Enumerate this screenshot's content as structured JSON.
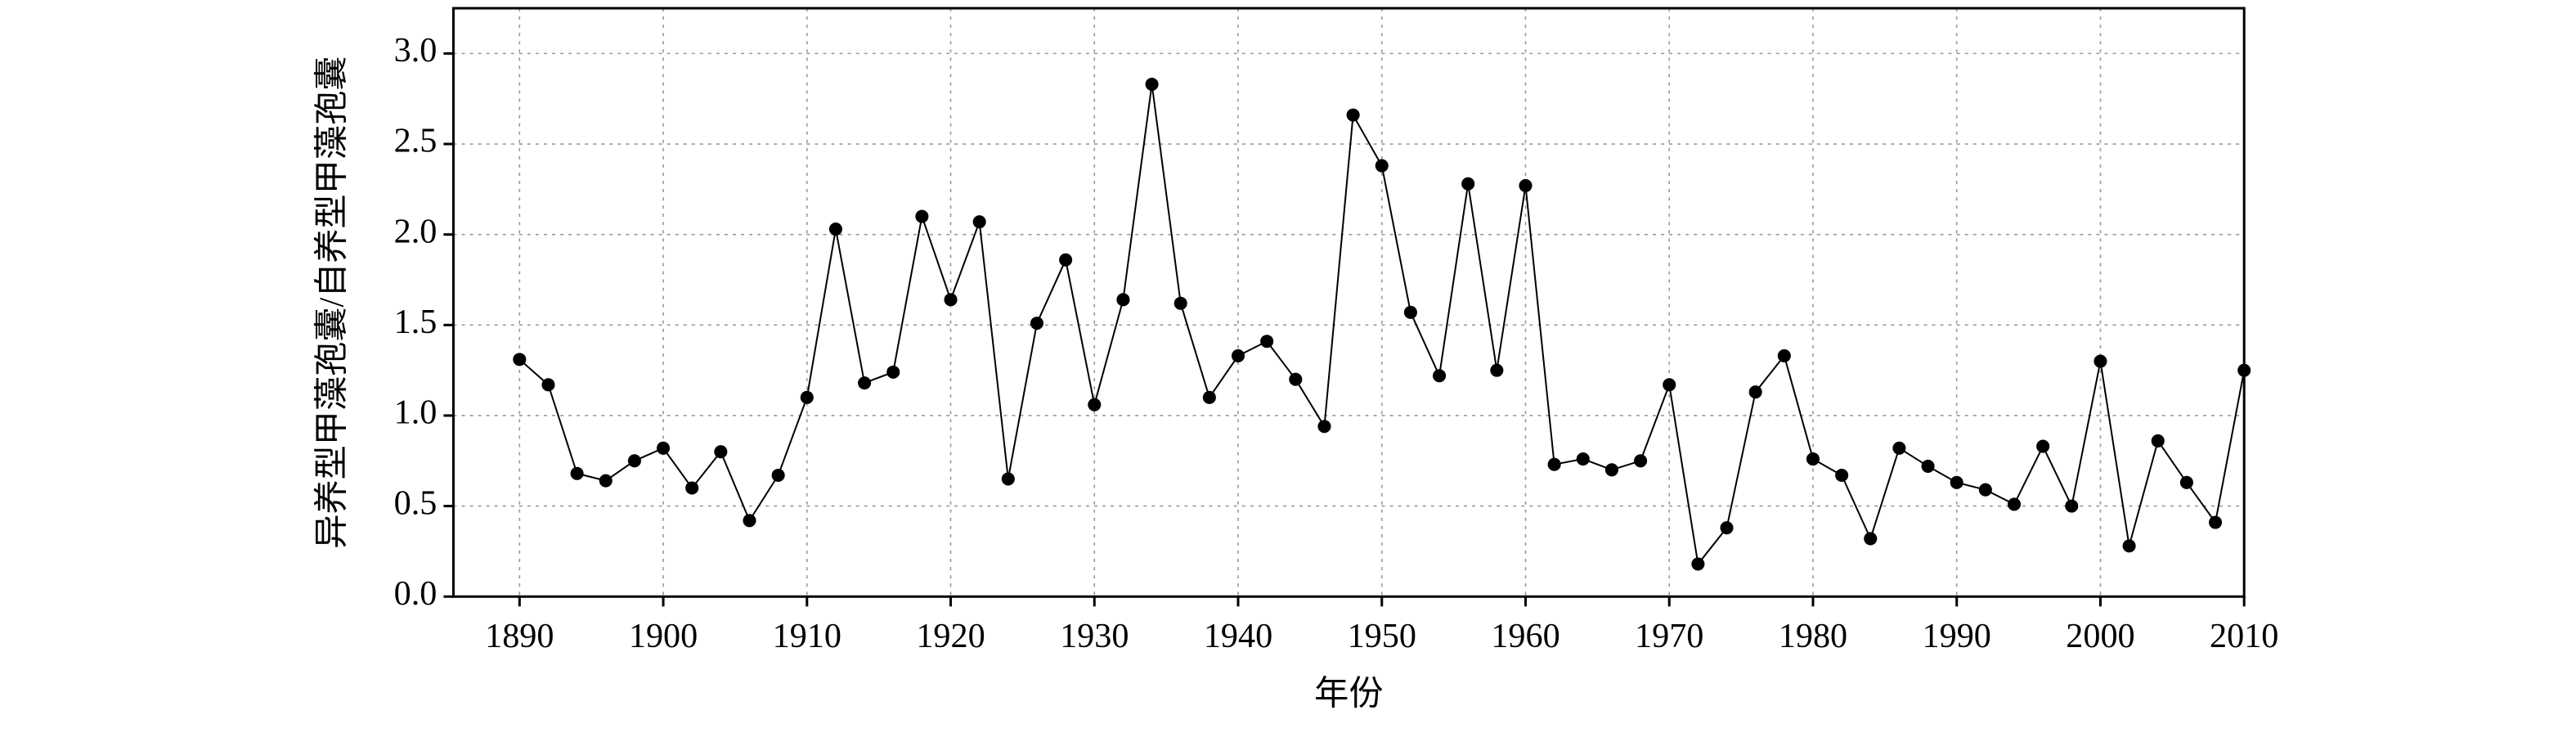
{
  "chart_data": {
    "type": "line",
    "xlabel": "年份",
    "ylabel": "异养型甲藻孢囊/自养型甲藻孢囊",
    "x": [
      1890,
      1892,
      1894,
      1896,
      1898,
      1900,
      1902,
      1904,
      1906,
      1908,
      1910,
      1912,
      1914,
      1916,
      1918,
      1920,
      1922,
      1924,
      1926,
      1928,
      1930,
      1932,
      1934,
      1936,
      1938,
      1940,
      1942,
      1944,
      1946,
      1948,
      1950,
      1952,
      1954,
      1956,
      1958,
      1960,
      1962,
      1964,
      1966,
      1968,
      1970,
      1972,
      1974,
      1976,
      1978,
      1980,
      1982,
      1984,
      1986,
      1988,
      1990,
      1992,
      1994,
      1996,
      1998,
      2000,
      2002,
      2004,
      2006,
      2008,
      2010
    ],
    "series": [
      {
        "color": "#000000",
        "values": [
          1.31,
          1.17,
          0.68,
          0.64,
          0.75,
          0.82,
          0.6,
          0.8,
          0.42,
          0.67,
          1.1,
          2.03,
          1.18,
          1.24,
          2.1,
          1.64,
          2.07,
          0.65,
          1.51,
          1.86,
          1.06,
          1.64,
          2.83,
          1.62,
          1.1,
          1.33,
          1.41,
          1.2,
          0.94,
          2.66,
          2.38,
          1.57,
          1.22,
          2.28,
          1.25,
          2.27,
          0.73,
          0.76,
          0.7,
          0.75,
          1.17,
          0.18,
          0.38,
          1.13,
          1.33,
          0.76,
          0.67,
          0.32,
          0.82,
          0.72,
          0.63,
          0.59,
          0.51,
          0.83,
          0.5,
          1.3,
          0.28,
          0.86,
          0.63,
          0.41,
          1.25
        ]
      }
    ],
    "xlim": [
      1885.4,
      2010
    ],
    "xticks": [
      1890,
      1900,
      1910,
      1920,
      1930,
      1940,
      1950,
      1960,
      1970,
      1980,
      1990,
      2000,
      2010
    ],
    "ylim": [
      0,
      3.25
    ],
    "yticks": [
      {
        "value": 0,
        "label": "0.0"
      },
      0.5,
      {
        "value": 1,
        "label": "1.0"
      },
      1.5,
      {
        "value": 2,
        "label": "2.0"
      },
      2.5,
      {
        "value": 3,
        "label": "3.0"
      }
    ],
    "grid": true
  }
}
